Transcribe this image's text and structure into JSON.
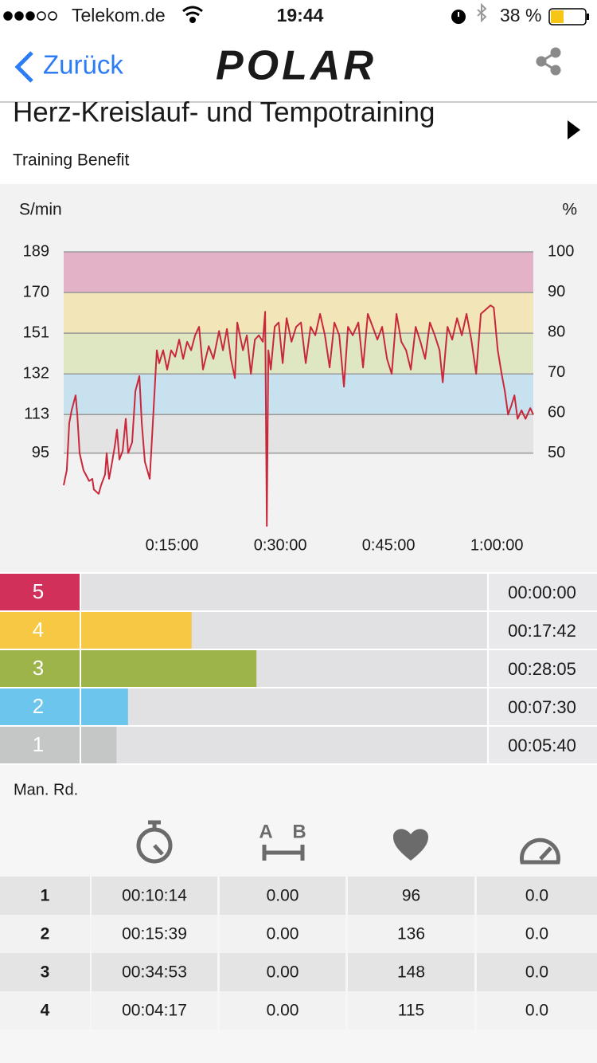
{
  "status_bar": {
    "carrier": "Telekom.de",
    "time": "19:44",
    "battery": {
      "value": 38,
      "label": "38 %"
    }
  },
  "nav": {
    "back": "Zurück",
    "logo": "POLAR"
  },
  "header": {
    "title": "Herz-Kreislauf- und Tempotraining",
    "subtitle": "Training Benefit"
  },
  "chart_data": [
    {
      "type": "line",
      "y_label": "S/min",
      "y2_label": "%",
      "color": "#c8283a",
      "x": [
        0,
        26,
        46,
        66,
        99,
        113,
        132,
        165,
        212,
        238,
        251,
        291,
        311,
        344,
        357,
        377,
        397,
        424,
        443,
        463,
        490,
        516,
        536,
        569,
        596,
        629,
        649,
        675,
        715,
        741,
        774,
        794,
        827,
        860,
        893,
        927,
        960,
        993,
        1026,
        1059,
        1092,
        1125,
        1158,
        1205,
        1244,
        1291,
        1324,
        1357,
        1390,
        1423,
        1443,
        1490,
        1522,
        1556,
        1589,
        1622,
        1655,
        1674,
        1688,
        1701,
        1721,
        1754,
        1787,
        1820,
        1853,
        1893,
        1932,
        1972,
        2012,
        2052,
        2091,
        2131,
        2171,
        2210,
        2250,
        2290,
        2329,
        2363,
        2402,
        2449,
        2488,
        2528,
        2568,
        2607,
        2647,
        2687,
        2726,
        2766,
        2806,
        2846,
        2885,
        2925,
        2965,
        3004,
        3044,
        3084,
        3124,
        3150,
        3190,
        3229,
        3269,
        3309,
        3348,
        3388,
        3428,
        3467,
        3507,
        3547,
        3574,
        3607,
        3640,
        3666,
        3693,
        3719,
        3746,
        3772,
        3805,
        3838,
        3878,
        3903
      ],
      "values": [
        80,
        87,
        109,
        115,
        122,
        113,
        95,
        87,
        82,
        83,
        78,
        76,
        80,
        85,
        95,
        83,
        89,
        98,
        106,
        92,
        96,
        111,
        95,
        100,
        124,
        131,
        109,
        91,
        83,
        109,
        143,
        137,
        143,
        134,
        143,
        140,
        148,
        139,
        147,
        143,
        150,
        154,
        134,
        145,
        139,
        152,
        143,
        153,
        139,
        130,
        156,
        143,
        150,
        132,
        148,
        150,
        147,
        161,
        61,
        143,
        134,
        154,
        156,
        137,
        158,
        147,
        154,
        156,
        137,
        154,
        150,
        160,
        150,
        135,
        156,
        150,
        126,
        154,
        150,
        156,
        135,
        160,
        154,
        148,
        154,
        139,
        132,
        160,
        147,
        143,
        134,
        154,
        147,
        139,
        156,
        150,
        143,
        128,
        154,
        148,
        158,
        150,
        160,
        148,
        132,
        160,
        162,
        164,
        163,
        143,
        132,
        124,
        113,
        117,
        122,
        111,
        115,
        111,
        116,
        113
      ],
      "xlim": [
        0,
        3903
      ],
      "xticks": [
        {
          "value": 900,
          "label": "0:15:00"
        },
        {
          "value": 1800,
          "label": "0:30:00"
        },
        {
          "value": 2700,
          "label": "0:45:00"
        },
        {
          "value": 3600,
          "label": "1:00:00"
        }
      ],
      "ylim": [
        61,
        189
      ],
      "yticks": [
        95,
        113,
        132,
        151,
        170,
        189
      ],
      "y2lim": [
        32,
        100
      ],
      "y2ticks": [
        50,
        60,
        70,
        80,
        90,
        100
      ],
      "zone_colors": [
        "#e3e3e3",
        "#c7e2ee",
        "#dfe6c2",
        "#f2e6b9",
        "#e3b2c6"
      ],
      "grid": true
    },
    {
      "type": "bar",
      "orientation": "horizontal",
      "categories": [
        "5",
        "4",
        "3",
        "2",
        "1"
      ],
      "values": [
        0,
        1062,
        1685,
        450,
        340
      ],
      "value_labels": [
        "00:00:00",
        "00:17:42",
        "00:28:05",
        "00:07:30",
        "00:05:40"
      ],
      "colors": [
        "#d0305a",
        "#f7c843",
        "#9cb44a",
        "#6cc5ec",
        "#c5c7c7"
      ],
      "xlim": [
        0,
        3903
      ]
    }
  ],
  "laps": {
    "title": "Man. Rd.",
    "distance_icon": {
      "a": "A",
      "b": "B"
    },
    "rows": [
      [
        "1",
        "00:10:14",
        "0.00",
        "96",
        "0.0"
      ],
      [
        "2",
        "00:15:39",
        "0.00",
        "136",
        "0.0"
      ],
      [
        "3",
        "00:34:53",
        "0.00",
        "148",
        "0.0"
      ],
      [
        "4",
        "00:04:17",
        "0.00",
        "115",
        "0.0"
      ]
    ]
  }
}
